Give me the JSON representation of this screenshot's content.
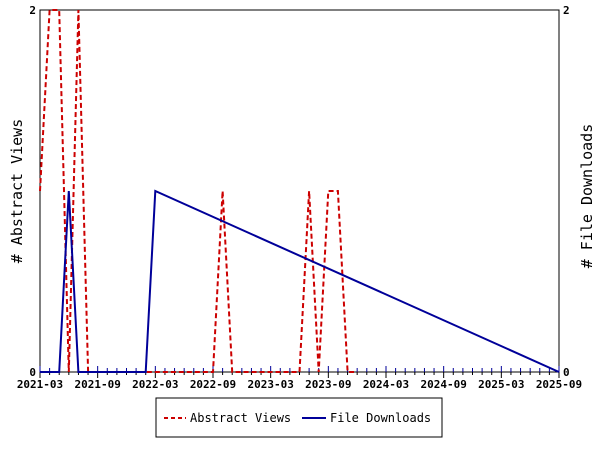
{
  "chart_data": {
    "type": "line",
    "ylabel_left": "# Abstract Views",
    "ylabel_right": "# File Downloads",
    "x_tick_labels": [
      "2021-03",
      "2021-09",
      "2022-03",
      "2022-09",
      "2023-03",
      "2023-09",
      "2024-03",
      "2024-09",
      "2025-03",
      "2025-09"
    ],
    "x_range": [
      "2021-03",
      "2025-09"
    ],
    "y_left_range": [
      0,
      2
    ],
    "y_right_range": [
      0,
      2
    ],
    "y_left_ticks": [
      "0",
      "2"
    ],
    "y_right_ticks": [
      "0",
      "2"
    ],
    "legend_position": "bottom",
    "grid": false,
    "series": [
      {
        "name": "Abstract Views",
        "color": "#cc0000",
        "style": "dashed",
        "axis": "left",
        "x": [
          "2021-03",
          "2021-04",
          "2021-05",
          "2021-06",
          "2021-07",
          "2021-08",
          "2021-09",
          "2021-10",
          "2022-09",
          "2022-10",
          "2022-11",
          "2023-06",
          "2023-07",
          "2023-08",
          "2023-09",
          "2023-10",
          "2023-11",
          "2023-12"
        ],
        "values": [
          1,
          2,
          2,
          0,
          2,
          0,
          0,
          0,
          0,
          1,
          0,
          0,
          1,
          0,
          1,
          1,
          0,
          0
        ]
      },
      {
        "name": "File Downloads",
        "color": "#000099",
        "style": "solid",
        "axis": "right",
        "x": [
          "2021-03",
          "2021-05",
          "2021-06",
          "2021-07",
          "2022-01",
          "2022-02",
          "2022-03",
          "2025-09"
        ],
        "values": [
          0,
          0,
          1,
          0,
          0,
          0,
          1,
          0
        ]
      }
    ]
  }
}
